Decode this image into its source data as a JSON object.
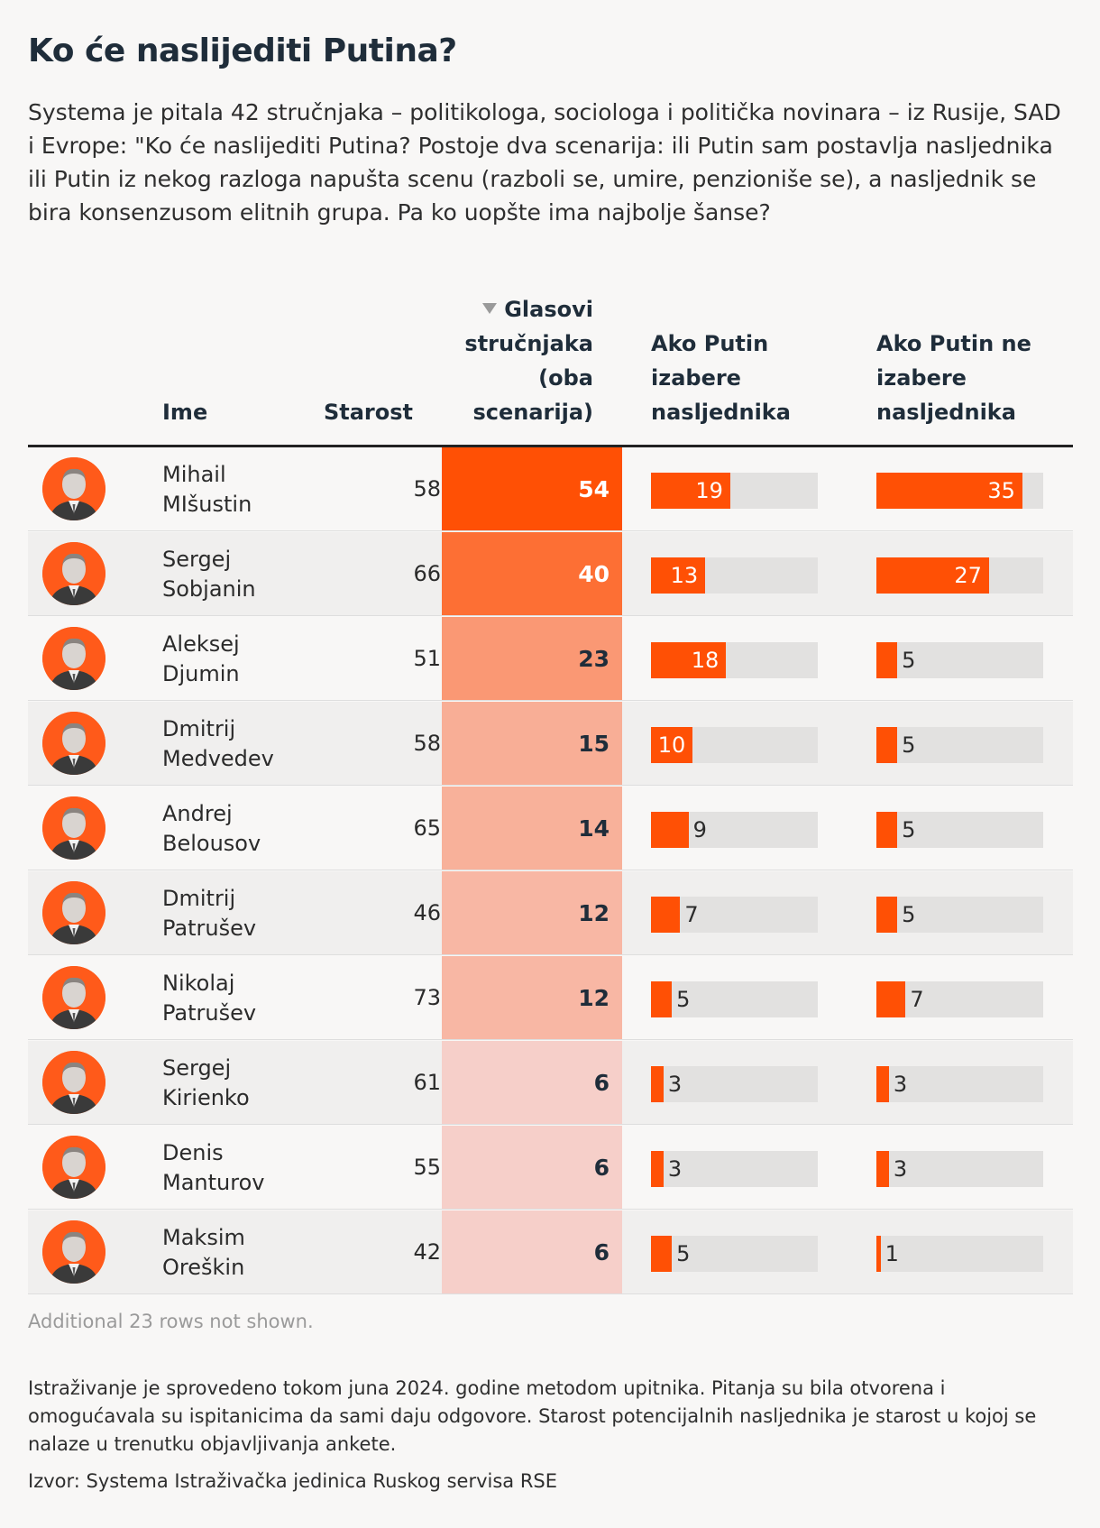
{
  "title": "Ko će naslijediti Putina?",
  "intro": "Systema je pitala 42 stručnjaka – politikologa, sociologa i politička novinara – iz Rusije, SAD i Evrope: \"Ko će naslijediti Putina? Postoje dva scenarija: ili Putin sam postavlja nasljednika ili Putin iz nekog razloga napušta scenu (razboli se, umire, penzioniše se), a nasljednik se bira konsenzusom elitnih grupa. Pa ko uopšte ima najbolje šanse?",
  "columns": {
    "name": "Ime",
    "age": "Starost",
    "votes": "Glasovi stručnjaka (oba scenarija)",
    "scenario1": "Ako Putin izabere nasljednika",
    "scenario2": "Ako Putin ne izabere nasljednika"
  },
  "colors": {
    "accent": "#ff5005",
    "track": "#e2e1e0",
    "heat_max": "#ff5005",
    "heat_min": "#f6cfc9"
  },
  "chart_data": {
    "type": "table",
    "sorted_by": "votes",
    "scale_max": 40,
    "rows": [
      {
        "first": "Mihail",
        "last": "MIšustin",
        "age": "58",
        "votes": 54,
        "s1": 19,
        "s2": 35
      },
      {
        "first": "Sergej",
        "last": "Sobjanin",
        "age": "66",
        "votes": 40,
        "s1": 13,
        "s2": 27
      },
      {
        "first": "Aleksej",
        "last": "Djumin",
        "age": "51",
        "votes": 23,
        "s1": 18,
        "s2": 5
      },
      {
        "first": "Dmitrij",
        "last": "Medvedev",
        "age": "58",
        "votes": 15,
        "s1": 10,
        "s2": 5
      },
      {
        "first": "Andrej",
        "last": "Belousov",
        "age": "65",
        "votes": 14,
        "s1": 9,
        "s2": 5
      },
      {
        "first": "Dmitrij",
        "last": "Patrušev",
        "age": "46",
        "votes": 12,
        "s1": 7,
        "s2": 5
      },
      {
        "first": "Nikolaj",
        "last": "Patrušev",
        "age": "73",
        "votes": 12,
        "s1": 5,
        "s2": 7
      },
      {
        "first": "Sergej",
        "last": "Kirienko",
        "age": "61",
        "votes": 6,
        "s1": 3,
        "s2": 3
      },
      {
        "first": "Denis",
        "last": "Manturov",
        "age": "55",
        "votes": 6,
        "s1": 3,
        "s2": 3
      },
      {
        "first": "Maksim",
        "last": "Oreškin",
        "age": "42",
        "votes": 6,
        "s1": 5,
        "s2": 1
      }
    ]
  },
  "more_rows_note": "Additional 23 rows not shown.",
  "footnote": "Istraživanje je sprovedeno tokom juna 2024. godine metodom upitnika. Pitanja su bila otvorena i omogućavala su ispitanicima da sami daju odgovore. Starost potencijalnih nasljednika je starost u kojoj se nalaze u trenutku objavljivanja ankete.",
  "source": "Izvor: Systema Istraživačka jedinica Ruskog servisa RSE"
}
